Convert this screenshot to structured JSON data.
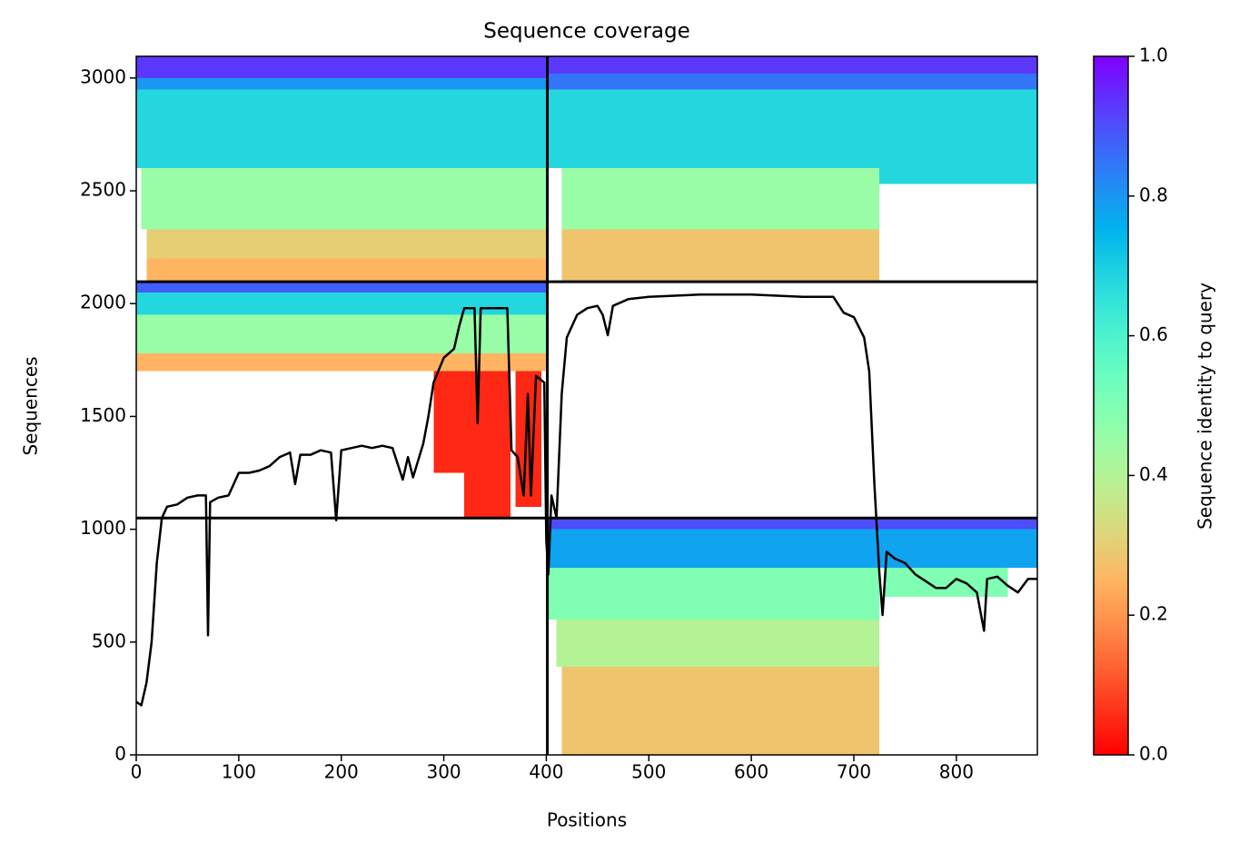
{
  "chart_data": {
    "type": "heatmap",
    "title": "Sequence coverage",
    "xlabel": "Positions",
    "ylabel": "Sequences",
    "xlim": [
      0,
      879
    ],
    "ylim": [
      0,
      3096
    ],
    "xticks": [
      0,
      100,
      200,
      300,
      400,
      500,
      600,
      700,
      800
    ],
    "yticks": [
      0,
      500,
      1000,
      1500,
      2000,
      2500,
      3000
    ],
    "colormap": "rainbow_r",
    "segment_breaks_x": [
      401
    ],
    "segment_breaks_y": [
      1050,
      2097
    ],
    "blocks": [
      {
        "x": [
          10,
          401
        ],
        "y": [
          2097,
          2200
        ],
        "identity": 0.25
      },
      {
        "x": [
          10,
          401
        ],
        "y": [
          2200,
          2330
        ],
        "identity": 0.3
      },
      {
        "x": [
          5,
          401
        ],
        "y": [
          2330,
          2600
        ],
        "identity": 0.45
      },
      {
        "x": [
          0,
          401
        ],
        "y": [
          2600,
          2950
        ],
        "identity": 0.68
      },
      {
        "x": [
          0,
          401
        ],
        "y": [
          2950,
          3000
        ],
        "identity": 0.8
      },
      {
        "x": [
          0,
          401
        ],
        "y": [
          3000,
          3096
        ],
        "identity": 0.93
      },
      {
        "x": [
          415,
          725
        ],
        "y": [
          2097,
          2330
        ],
        "identity": 0.28
      },
      {
        "x": [
          415,
          725
        ],
        "y": [
          2330,
          2600
        ],
        "identity": 0.45
      },
      {
        "x": [
          401,
          725
        ],
        "y": [
          2600,
          2950
        ],
        "identity": 0.68
      },
      {
        "x": [
          725,
          879
        ],
        "y": [
          2530,
          2950
        ],
        "identity": 0.68
      },
      {
        "x": [
          401,
          879
        ],
        "y": [
          2950,
          3020
        ],
        "identity": 0.85
      },
      {
        "x": [
          401,
          879
        ],
        "y": [
          3020,
          3096
        ],
        "identity": 0.93
      },
      {
        "x": [
          0,
          401
        ],
        "y": [
          1700,
          1780
        ],
        "identity": 0.25
      },
      {
        "x": [
          0,
          401
        ],
        "y": [
          1780,
          1950
        ],
        "identity": 0.45
      },
      {
        "x": [
          0,
          401
        ],
        "y": [
          1950,
          2050
        ],
        "identity": 0.68
      },
      {
        "x": [
          0,
          401
        ],
        "y": [
          2050,
          2097
        ],
        "identity": 0.88
      },
      {
        "x": [
          320,
          365
        ],
        "y": [
          1050,
          1700
        ],
        "identity": 0.05
      },
      {
        "x": [
          290,
          320
        ],
        "y": [
          1250,
          1700
        ],
        "identity": 0.05
      },
      {
        "x": [
          370,
          395
        ],
        "y": [
          1100,
          1700
        ],
        "identity": 0.05
      },
      {
        "x": [
          415,
          725
        ],
        "y": [
          0,
          390
        ],
        "identity": 0.28
      },
      {
        "x": [
          410,
          725
        ],
        "y": [
          390,
          600
        ],
        "identity": 0.4
      },
      {
        "x": [
          401,
          725
        ],
        "y": [
          600,
          830
        ],
        "identity": 0.5
      },
      {
        "x": [
          730,
          850
        ],
        "y": [
          700,
          830
        ],
        "identity": 0.5
      },
      {
        "x": [
          401,
          879
        ],
        "y": [
          830,
          1000
        ],
        "identity": 0.78
      },
      {
        "x": [
          401,
          879
        ],
        "y": [
          1000,
          1050
        ],
        "identity": 0.9
      }
    ],
    "coverage": {
      "color": "#000000",
      "x": [
        0,
        5,
        10,
        15,
        20,
        25,
        30,
        40,
        50,
        60,
        68,
        70,
        72,
        80,
        90,
        100,
        110,
        120,
        130,
        140,
        150,
        155,
        160,
        170,
        180,
        190,
        195,
        200,
        210,
        220,
        230,
        240,
        250,
        260,
        265,
        270,
        280,
        285,
        290,
        300,
        310,
        315,
        320,
        330,
        333,
        336,
        350,
        362,
        366,
        372,
        378,
        382,
        385,
        390,
        398,
        400,
        402,
        405,
        410,
        415,
        420,
        430,
        440,
        450,
        455,
        460,
        465,
        480,
        500,
        550,
        600,
        650,
        680,
        690,
        700,
        710,
        715,
        720,
        725,
        728,
        732,
        740,
        750,
        760,
        770,
        780,
        790,
        800,
        810,
        820,
        827,
        830,
        840,
        850,
        860,
        870,
        879
      ],
      "values": [
        235,
        220,
        320,
        500,
        850,
        1050,
        1100,
        1110,
        1140,
        1150,
        1150,
        530,
        1120,
        1140,
        1150,
        1250,
        1250,
        1260,
        1280,
        1320,
        1340,
        1200,
        1330,
        1330,
        1350,
        1340,
        1040,
        1350,
        1360,
        1370,
        1360,
        1370,
        1360,
        1220,
        1320,
        1230,
        1380,
        1500,
        1650,
        1760,
        1800,
        1900,
        1980,
        1980,
        1470,
        1980,
        1980,
        1980,
        1350,
        1320,
        1150,
        1600,
        1150,
        1680,
        1650,
        950,
        800,
        1150,
        1050,
        1600,
        1850,
        1950,
        1980,
        1990,
        1950,
        1860,
        1990,
        2020,
        2030,
        2040,
        2040,
        2030,
        2030,
        1960,
        1940,
        1850,
        1700,
        1200,
        800,
        620,
        900,
        870,
        850,
        800,
        770,
        740,
        740,
        780,
        760,
        720,
        550,
        780,
        790,
        750,
        720,
        780,
        780
      ]
    },
    "colorbar": {
      "label": "Sequence identity to query",
      "lim": [
        0,
        1
      ],
      "ticks": [
        {
          "value": 0,
          "label": "0.0"
        },
        0.2,
        0.4,
        0.6,
        0.8,
        {
          "value": 1,
          "label": "1.0"
        }
      ]
    }
  }
}
